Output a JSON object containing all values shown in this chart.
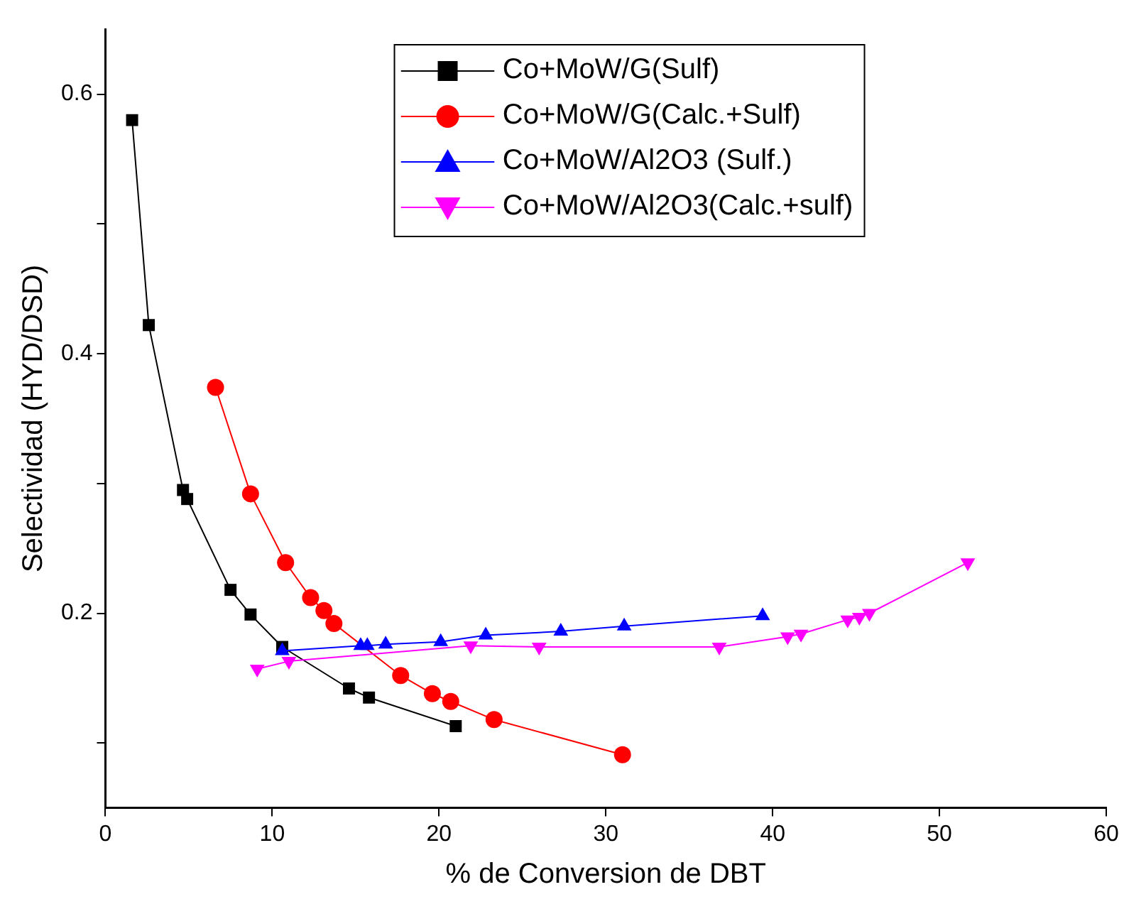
{
  "chart_data": {
    "type": "line",
    "xlabel": "% de Conversion de DBT",
    "ylabel": "Selectividad (HYD/DSD)",
    "xlim": [
      0,
      60
    ],
    "xticks": [
      0,
      10,
      20,
      30,
      40,
      50,
      60
    ],
    "ylim": [
      0.05,
      0.65
    ],
    "yticks": [
      {
        "value": 0.1,
        "label": null
      },
      0.2,
      {
        "value": 0.3,
        "label": null
      },
      0.4,
      {
        "value": 0.5,
        "label": null
      },
      0.6
    ],
    "grid": false,
    "legend": "top",
    "line_style": "solid",
    "series": [
      {
        "name": "Co+MoW/G(Sulf)",
        "color": "#000000",
        "marker": "square",
        "x": [
          1.6,
          2.6,
          4.65,
          4.9,
          7.5,
          8.7,
          10.6,
          14.6,
          15.8,
          21.0
        ],
        "values": [
          0.58,
          0.422,
          0.295,
          0.288,
          0.218,
          0.199,
          0.174,
          0.142,
          0.135,
          0.113
        ]
      },
      {
        "name": "Co+MoW/G(Calc.+Sulf)",
        "color": "#ff0000",
        "marker": "circle",
        "x": [
          6.6,
          8.7,
          10.8,
          12.3,
          13.1,
          13.7,
          17.7,
          19.6,
          20.7,
          23.3,
          31.0
        ],
        "values": [
          0.374,
          0.292,
          0.239,
          0.212,
          0.202,
          0.192,
          0.152,
          0.138,
          0.132,
          0.118,
          0.091
        ]
      },
      {
        "name": "Co+MoW/Al2O3 (Sulf.)",
        "color": "#0000ff",
        "marker": "triangle",
        "x": [
          10.6,
          15.3,
          15.7,
          16.8,
          20.1,
          22.8,
          27.3,
          31.1,
          39.4
        ],
        "values": [
          0.171,
          0.175,
          0.175,
          0.176,
          0.178,
          0.183,
          0.186,
          0.19,
          0.198
        ]
      },
      {
        "name": "Co+MoW/Al2O3(Calc.+sulf)",
        "color": "#ff00ff",
        "marker": "triangle-down",
        "x": [
          9.1,
          11.0,
          21.9,
          26.0,
          36.8,
          40.9,
          41.7,
          44.5,
          45.2,
          45.8,
          51.7
        ],
        "values": [
          0.157,
          0.163,
          0.175,
          0.174,
          0.174,
          0.182,
          0.184,
          0.195,
          0.197,
          0.2,
          0.239
        ]
      }
    ]
  }
}
